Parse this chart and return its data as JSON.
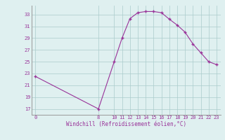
{
  "x": [
    0,
    8,
    10,
    11,
    12,
    13,
    14,
    15,
    16,
    17,
    18,
    19,
    20,
    21,
    22,
    23
  ],
  "y": [
    22.5,
    17.0,
    25.0,
    29.0,
    32.3,
    33.3,
    33.5,
    33.5,
    33.3,
    32.2,
    31.2,
    30.0,
    28.0,
    26.5,
    25.0,
    24.5
  ],
  "line_color": "#993399",
  "marker_color": "#993399",
  "bg_color": "#dff0f0",
  "grid_color": "#aacccc",
  "xlabel": "Windchill (Refroidissement éolien,°C)",
  "ytick_labels": [
    "17",
    "19",
    "21",
    "23",
    "25",
    "27",
    "29",
    "31",
    "33"
  ],
  "ytick_values": [
    17,
    19,
    21,
    23,
    25,
    27,
    29,
    31,
    33
  ],
  "xtick_labels": [
    "0",
    "8",
    "10",
    "11",
    "12",
    "13",
    "14",
    "15",
    "16",
    "17",
    "18",
    "19",
    "20",
    "21",
    "22",
    "23"
  ],
  "xtick_values": [
    0,
    8,
    10,
    11,
    12,
    13,
    14,
    15,
    16,
    17,
    18,
    19,
    20,
    21,
    22,
    23
  ],
  "ylim": [
    16.0,
    34.5
  ],
  "xlim": [
    -0.5,
    23.5
  ]
}
